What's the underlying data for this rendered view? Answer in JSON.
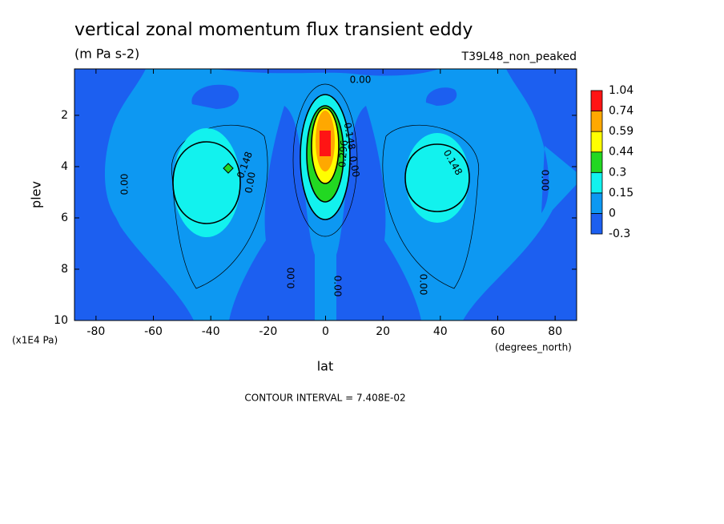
{
  "chart_data": {
    "type": "contour",
    "title": "vertical zonal momentum flux transient eddy",
    "subtitle": "(m Pa s-2)",
    "dataset": "T39L48_non_peaked",
    "xlabel": "lat",
    "ylabel": "plev",
    "x_units": "(degrees_north)",
    "y_units": "(x1E4 Pa)",
    "footer": "CONTOUR INTERVAL = 7.408E-02",
    "xlim": [
      -87.5,
      87.5
    ],
    "xticks": [
      -80,
      -60,
      -40,
      -20,
      0,
      20,
      40,
      60,
      80
    ],
    "ylim": [
      10,
      0.19
    ],
    "yticks": [
      2,
      4,
      6,
      8,
      10
    ],
    "levels": [
      -0.3,
      0,
      0.15,
      0.3,
      0.44,
      0.59,
      0.74,
      1.04
    ],
    "colors": [
      "#1c5ff0",
      "#0d98f2",
      "#12f2ee",
      "#22d822",
      "#ffff00",
      "#ffa800",
      "#ff1414"
    ],
    "contour_labels": [
      "0.00",
      "0.00",
      "0.148",
      "0.00",
      "0.148",
      "0.00",
      "0.00",
      "0.00",
      "0.00",
      "0.148",
      "0.296",
      "0.00"
    ]
  }
}
